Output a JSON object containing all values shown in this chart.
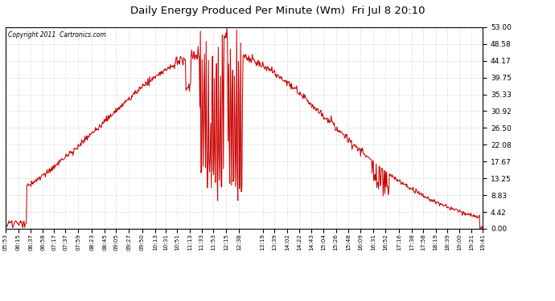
{
  "title": "Daily Energy Produced Per Minute (Wm)  Fri Jul 8 20:10",
  "copyright": "Copyright 2011  Cartronics.com",
  "background_color": "#ffffff",
  "plot_background": "#ffffff",
  "line_color": "#cc0000",
  "grid_color": "#bbbbbb",
  "yticks": [
    0.0,
    4.42,
    8.83,
    13.25,
    17.67,
    22.08,
    26.5,
    30.92,
    35.33,
    39.75,
    44.17,
    48.58,
    53.0
  ],
  "ylim": [
    0,
    53.0
  ],
  "xtick_labels": [
    "05:53",
    "06:15",
    "06:37",
    "06:58",
    "07:17",
    "07:37",
    "07:59",
    "08:23",
    "08:45",
    "09:05",
    "09:27",
    "09:50",
    "10:13",
    "10:31",
    "10:51",
    "11:13",
    "11:33",
    "11:53",
    "12:15",
    "12:38",
    "13:19",
    "13:39",
    "14:02",
    "14:22",
    "14:43",
    "15:04",
    "15:26",
    "15:48",
    "16:09",
    "16:31",
    "16:52",
    "17:16",
    "17:38",
    "17:58",
    "18:19",
    "18:39",
    "19:00",
    "19:21",
    "19:41"
  ]
}
